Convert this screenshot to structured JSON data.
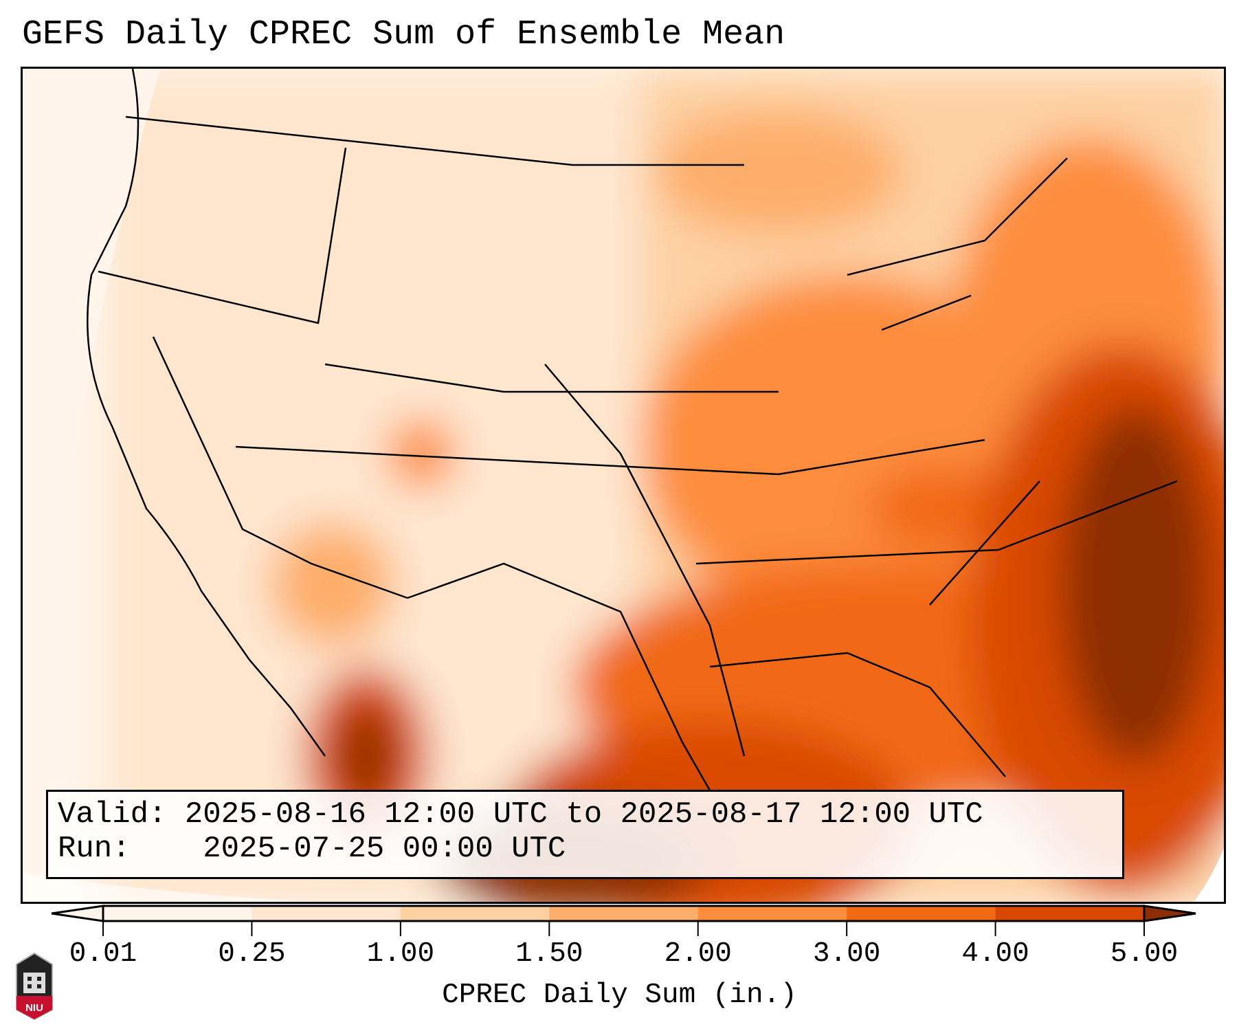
{
  "title": "GEFS Daily CPREC Sum of Ensemble Mean",
  "info": {
    "valid_label": "Valid:",
    "valid_value": "2025-08-16 12:00 UTC to 2025-08-17 12:00 UTC",
    "run_label": "Run:",
    "run_value": "2025-07-25 00:00 UTC"
  },
  "colorbar": {
    "label": "CPREC Daily Sum (in.)",
    "ticks": [
      "0.01",
      "0.25",
      "1.00",
      "1.50",
      "2.00",
      "3.00",
      "4.00",
      "5.00"
    ],
    "colors": [
      "#fff5eb",
      "#fee6ce",
      "#fdd0a2",
      "#fdae6b",
      "#fd8d3c",
      "#f16913",
      "#d94801",
      "#8c2d04"
    ]
  },
  "logo": {
    "text": "NIU"
  }
}
